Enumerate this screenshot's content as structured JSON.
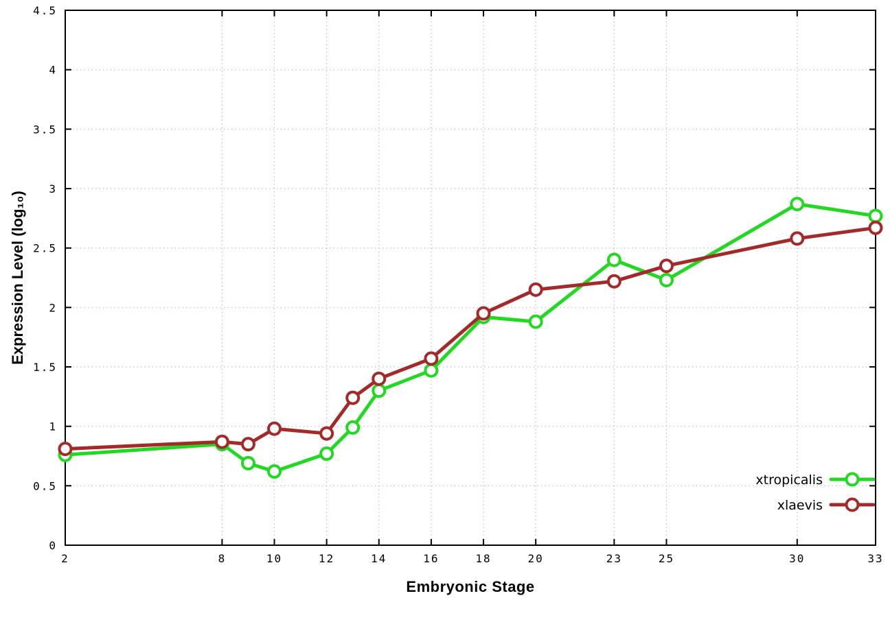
{
  "chart_data": {
    "type": "line",
    "x": [
      2,
      8,
      9,
      10,
      12,
      13,
      14,
      16,
      18,
      20,
      23,
      25,
      30,
      33
    ],
    "series": [
      {
        "name": "xtropicalis",
        "color": "#22d922",
        "values": [
          0.76,
          0.85,
          0.69,
          0.62,
          0.77,
          0.99,
          1.3,
          1.47,
          1.92,
          1.88,
          2.4,
          2.23,
          2.87,
          2.77
        ]
      },
      {
        "name": "xlaevis",
        "color": "#a42a2a",
        "values": [
          0.81,
          0.87,
          0.85,
          0.98,
          0.94,
          1.24,
          1.4,
          1.57,
          1.95,
          2.15,
          2.22,
          2.35,
          2.58,
          2.67
        ]
      }
    ],
    "xlabel": "Embryonic Stage",
    "ylabel": "Expression Level (log₁₀)",
    "xlim": [
      2,
      33
    ],
    "ylim": [
      0,
      4.5
    ],
    "xticks": [
      2,
      8,
      10,
      12,
      14,
      16,
      18,
      20,
      23,
      25,
      30,
      33
    ],
    "yticks": [
      0,
      0.5,
      1,
      1.5,
      2,
      2.5,
      3,
      3.5,
      4,
      4.5
    ],
    "ytick_labels": [
      "0",
      "0.5",
      "1",
      "1.5",
      "2",
      "2.5",
      "3",
      "3.5",
      "4",
      "4.5"
    ],
    "grid": true,
    "legend_position": "bottom-right"
  },
  "colors": {
    "background": "#ffffff",
    "grid": "#bdbdbd",
    "axis": "#000000",
    "text": "#000000"
  }
}
